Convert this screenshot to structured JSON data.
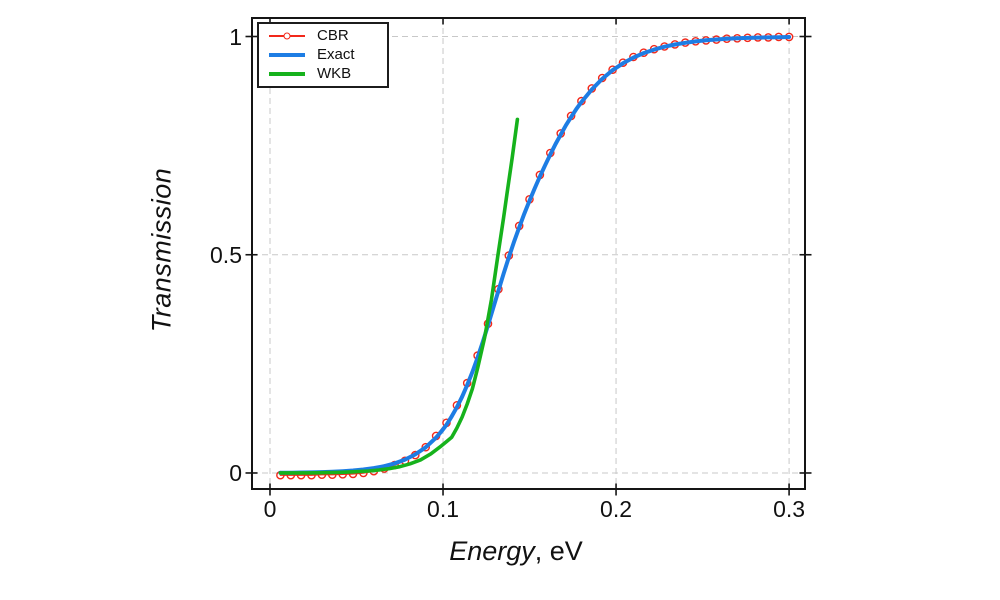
{
  "chart_data": {
    "type": "line",
    "title": "",
    "xlabel": {
      "italic": "Energy",
      "rest": ", eV"
    },
    "ylabel": "Transmission",
    "xlim": [
      -0.0104,
      0.3092
    ],
    "ylim": [
      -0.0367,
      1.0424
    ],
    "xticks": [
      {
        "v": 0,
        "label": "0"
      },
      {
        "v": 0.1,
        "label": "0.1"
      },
      {
        "v": 0.2,
        "label": "0.2"
      },
      {
        "v": 0.3,
        "label": "0.3"
      }
    ],
    "yticks": [
      {
        "v": 0,
        "label": "0"
      },
      {
        "v": 0.5,
        "label": "0.5"
      },
      {
        "v": 1,
        "label": "1"
      }
    ],
    "grid": {
      "on": true,
      "color": "#c8c8c8",
      "dash": "6 4"
    },
    "axis_color": "#151515",
    "legend": {
      "position": "top-left",
      "border_color": "#1c1c1c",
      "background": "#ffffff"
    },
    "series": [
      {
        "name": "CBR",
        "style": "line+marker",
        "color": "#f2281a",
        "line_width": 1.4,
        "marker": "circle-open",
        "marker_radius": 3.6,
        "points": [
          [
            0.006,
            -0.005
          ],
          [
            0.012,
            -0.005
          ],
          [
            0.018,
            -0.005
          ],
          [
            0.024,
            -0.005
          ],
          [
            0.03,
            -0.004
          ],
          [
            0.036,
            -0.004
          ],
          [
            0.042,
            -0.003
          ],
          [
            0.048,
            -0.002
          ],
          [
            0.054,
            0.0
          ],
          [
            0.06,
            0.004
          ],
          [
            0.066,
            0.01
          ],
          [
            0.072,
            0.018
          ],
          [
            0.078,
            0.028
          ],
          [
            0.084,
            0.041
          ],
          [
            0.09,
            0.059
          ],
          [
            0.096,
            0.085
          ],
          [
            0.102,
            0.115
          ],
          [
            0.108,
            0.155
          ],
          [
            0.114,
            0.206
          ],
          [
            0.12,
            0.269
          ],
          [
            0.126,
            0.342
          ],
          [
            0.132,
            0.421
          ],
          [
            0.138,
            0.498
          ],
          [
            0.144,
            0.566
          ],
          [
            0.15,
            0.627
          ],
          [
            0.156,
            0.683
          ],
          [
            0.162,
            0.733
          ],
          [
            0.168,
            0.778
          ],
          [
            0.174,
            0.818
          ],
          [
            0.18,
            0.852
          ],
          [
            0.186,
            0.881
          ],
          [
            0.192,
            0.905
          ],
          [
            0.198,
            0.924
          ],
          [
            0.204,
            0.94
          ],
          [
            0.21,
            0.953
          ],
          [
            0.216,
            0.963
          ],
          [
            0.222,
            0.971
          ],
          [
            0.228,
            0.977
          ],
          [
            0.234,
            0.982
          ],
          [
            0.24,
            0.986
          ],
          [
            0.246,
            0.989
          ],
          [
            0.252,
            0.991
          ],
          [
            0.258,
            0.993
          ],
          [
            0.264,
            0.995
          ],
          [
            0.27,
            0.996
          ],
          [
            0.276,
            0.997
          ],
          [
            0.282,
            0.998
          ],
          [
            0.288,
            0.998
          ],
          [
            0.294,
            0.999
          ],
          [
            0.3,
            0.999
          ]
        ]
      },
      {
        "name": "Exact",
        "style": "line",
        "color": "#1d7de4",
        "line_width": 4,
        "points": [
          [
            0.006,
            0.0005
          ],
          [
            0.012,
            0.0007
          ],
          [
            0.018,
            0.001
          ],
          [
            0.024,
            0.0014
          ],
          [
            0.03,
            0.002
          ],
          [
            0.036,
            0.0029
          ],
          [
            0.042,
            0.004
          ],
          [
            0.048,
            0.0057
          ],
          [
            0.054,
            0.008
          ],
          [
            0.06,
            0.0111
          ],
          [
            0.066,
            0.0156
          ],
          [
            0.072,
            0.0219
          ],
          [
            0.078,
            0.0306
          ],
          [
            0.084,
            0.0425
          ],
          [
            0.09,
            0.0589
          ],
          [
            0.096,
            0.081
          ],
          [
            0.099,
            0.0947
          ],
          [
            0.102,
            0.1105
          ],
          [
            0.105,
            0.1297
          ],
          [
            0.108,
            0.1507
          ],
          [
            0.111,
            0.1746
          ],
          [
            0.114,
            0.2015
          ],
          [
            0.117,
            0.2314
          ],
          [
            0.12,
            0.2645
          ],
          [
            0.123,
            0.3003
          ],
          [
            0.126,
            0.3383
          ],
          [
            0.129,
            0.3777
          ],
          [
            0.132,
            0.4174
          ],
          [
            0.135,
            0.4565
          ],
          [
            0.138,
            0.494
          ],
          [
            0.141,
            0.5294
          ],
          [
            0.144,
            0.5627
          ],
          [
            0.147,
            0.5941
          ],
          [
            0.15,
            0.6238
          ],
          [
            0.153,
            0.652
          ],
          [
            0.156,
            0.6792
          ],
          [
            0.159,
            0.705
          ],
          [
            0.162,
            0.7297
          ],
          [
            0.165,
            0.7535
          ],
          [
            0.168,
            0.7751
          ],
          [
            0.171,
            0.7966
          ],
          [
            0.174,
            0.8154
          ],
          [
            0.177,
            0.8336
          ],
          [
            0.18,
            0.8498
          ],
          [
            0.186,
            0.8787
          ],
          [
            0.192,
            0.9029
          ],
          [
            0.198,
            0.9227
          ],
          [
            0.204,
            0.9387
          ],
          [
            0.21,
            0.9517
          ],
          [
            0.216,
            0.9619
          ],
          [
            0.222,
            0.9701
          ],
          [
            0.228,
            0.9766
          ],
          [
            0.234,
            0.9816
          ],
          [
            0.24,
            0.9856
          ],
          [
            0.246,
            0.9888
          ],
          [
            0.252,
            0.9912
          ],
          [
            0.258,
            0.9932
          ],
          [
            0.264,
            0.9947
          ],
          [
            0.27,
            0.9958
          ],
          [
            0.276,
            0.9968
          ],
          [
            0.282,
            0.9975
          ],
          [
            0.288,
            0.998
          ],
          [
            0.294,
            0.9985
          ],
          [
            0.3,
            0.9988
          ]
        ]
      },
      {
        "name": "WKB",
        "style": "line",
        "color": "#16b21c",
        "line_width": 3.6,
        "points": [
          [
            0.006,
            0.0001
          ],
          [
            0.015,
            0.0002
          ],
          [
            0.021,
            0.0003
          ],
          [
            0.027,
            0.0005
          ],
          [
            0.033,
            0.0008
          ],
          [
            0.039,
            0.0013
          ],
          [
            0.045,
            0.002
          ],
          [
            0.051,
            0.0031
          ],
          [
            0.057,
            0.0046
          ],
          [
            0.063,
            0.0068
          ],
          [
            0.069,
            0.01
          ],
          [
            0.075,
            0.0145
          ],
          [
            0.081,
            0.021
          ],
          [
            0.087,
            0.03
          ],
          [
            0.093,
            0.044
          ],
          [
            0.099,
            0.062
          ],
          [
            0.102,
            0.072
          ],
          [
            0.105,
            0.082
          ],
          [
            0.108,
            0.103
          ],
          [
            0.111,
            0.128
          ],
          [
            0.114,
            0.158
          ],
          [
            0.117,
            0.193
          ],
          [
            0.12,
            0.24
          ],
          [
            0.124,
            0.31
          ],
          [
            0.128,
            0.398
          ],
          [
            0.1318,
            0.5
          ],
          [
            0.135,
            0.585
          ],
          [
            0.137,
            0.64
          ],
          [
            0.14,
            0.722
          ],
          [
            0.143,
            0.81
          ]
        ]
      }
    ]
  }
}
